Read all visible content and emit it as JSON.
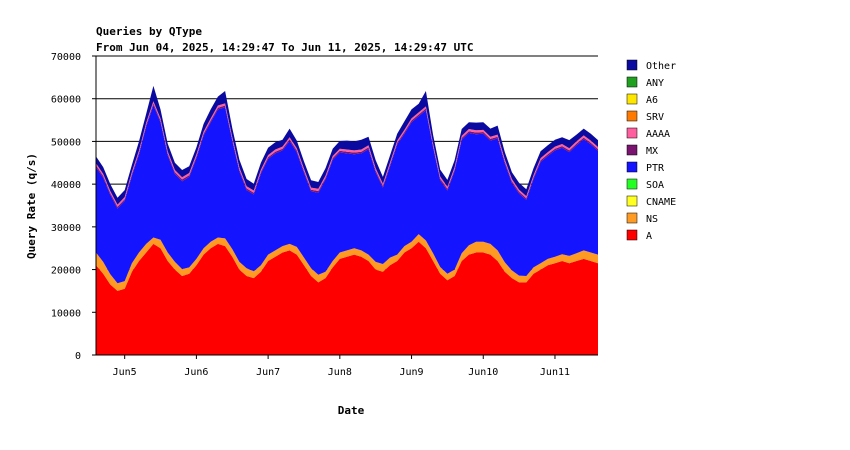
{
  "chart_data": {
    "type": "area",
    "stacked": true,
    "title": "Queries by QType",
    "subtitle": "From Jun 04, 2025, 14:29:47 To Jun 11, 2025, 14:29:47 UTC",
    "xlabel": "Date",
    "ylabel": "Query Rate (q/s)",
    "x_ticks": [
      "Jun5",
      "Jun6",
      "Jun7",
      "Jun8",
      "Jun9",
      "Jun10",
      "Jun11"
    ],
    "x_range_days": [
      0,
      7
    ],
    "x_tick_days": [
      0.4,
      1.4,
      2.4,
      3.4,
      4.4,
      5.4,
      6.4
    ],
    "ylim": [
      0,
      70000
    ],
    "y_ticks": [
      0,
      10000,
      20000,
      30000,
      40000,
      50000,
      60000,
      70000
    ],
    "y_tick_labels": [
      "0",
      "10000",
      "20000",
      "30000",
      "40000",
      "50000",
      "60000",
      "70000"
    ],
    "legend_position": "right",
    "colors": {
      "Other": "#0a0aa0",
      "ANY": "#1fa01f",
      "A6": "#ffe600",
      "SRV": "#ff7a00",
      "AAAA": "#ff5f9e",
      "MX": "#7a1470",
      "PTR": "#1414ff",
      "SOA": "#22ff22",
      "CNAME": "#ffff22",
      "NS": "#ff9a22",
      "A": "#ff0000"
    },
    "legend": [
      "Other",
      "ANY",
      "A6",
      "SRV",
      "AAAA",
      "MX",
      "PTR",
      "SOA",
      "CNAME",
      "NS",
      "A"
    ],
    "x_days": [
      0,
      0.1,
      0.2,
      0.3,
      0.4,
      0.5,
      0.6,
      0.7,
      0.8,
      0.9,
      1.0,
      1.1,
      1.2,
      1.3,
      1.4,
      1.5,
      1.6,
      1.7,
      1.8,
      1.9,
      2.0,
      2.1,
      2.2,
      2.3,
      2.4,
      2.5,
      2.6,
      2.7,
      2.8,
      2.9,
      3.0,
      3.1,
      3.2,
      3.3,
      3.4,
      3.5,
      3.6,
      3.7,
      3.8,
      3.9,
      4.0,
      4.1,
      4.2,
      4.3,
      4.4,
      4.5,
      4.6,
      4.7,
      4.8,
      4.9,
      5.0,
      5.1,
      5.2,
      5.3,
      5.4,
      5.5,
      5.6,
      5.7,
      5.8,
      5.9,
      6.0,
      6.1,
      6.2,
      6.3,
      6.4,
      6.5,
      6.6,
      6.7,
      6.8,
      6.9,
      7.0
    ],
    "series": [
      {
        "name": "A",
        "values": [
          21000,
          19000,
          16500,
          15000,
          15500,
          19500,
          22000,
          24000,
          26000,
          25000,
          22000,
          20000,
          18500,
          19000,
          21000,
          23500,
          25000,
          26000,
          25500,
          23000,
          20000,
          18500,
          18000,
          19500,
          22000,
          23000,
          24000,
          24500,
          23500,
          21000,
          18500,
          17000,
          18000,
          20500,
          22500,
          23000,
          23500,
          23000,
          22000,
          20000,
          19500,
          21000,
          22000,
          24000,
          25000,
          26500,
          25000,
          22000,
          19000,
          17500,
          18500,
          22000,
          23500,
          24000,
          24000,
          23500,
          22000,
          19500,
          18000,
          17000,
          17000,
          19000,
          20000,
          21000,
          21500,
          22000,
          21500,
          22000,
          22500,
          22000,
          21500
        ]
      },
      {
        "name": "NS",
        "values": [
          3000,
          2800,
          2400,
          1800,
          1800,
          2000,
          2000,
          2000,
          1500,
          2000,
          2000,
          1800,
          1600,
          1500,
          1500,
          1500,
          1500,
          1500,
          1800,
          1800,
          1800,
          1800,
          1600,
          1500,
          1500,
          1500,
          1500,
          1500,
          1800,
          1800,
          1800,
          1800,
          1500,
          1500,
          1500,
          1500,
          1500,
          1500,
          1500,
          1800,
          1800,
          1800,
          1500,
          1500,
          1500,
          1800,
          1800,
          1800,
          1600,
          1500,
          1500,
          1800,
          2200,
          2500,
          2500,
          2500,
          2500,
          2200,
          1800,
          1600,
          1500,
          1500,
          1500,
          1500,
          1500,
          1600,
          1700,
          1800,
          2000,
          2000,
          2000
        ]
      },
      {
        "name": "CNAME",
        "values": [
          0,
          0,
          0,
          0,
          0,
          0,
          0,
          0,
          0,
          0,
          0,
          0,
          0,
          0,
          0,
          0,
          0,
          0,
          0,
          0,
          0,
          0,
          0,
          0,
          0,
          0,
          0,
          0,
          0,
          0,
          0,
          0,
          0,
          0,
          0,
          0,
          0,
          0,
          0,
          0,
          0,
          0,
          0,
          0,
          0,
          0,
          0,
          0,
          0,
          0,
          0,
          0,
          0,
          0,
          0,
          0,
          0,
          0,
          0,
          0,
          0,
          0,
          0,
          0,
          0,
          0,
          0,
          0,
          0,
          0,
          0
        ]
      },
      {
        "name": "SOA",
        "values": [
          0,
          0,
          0,
          0,
          0,
          0,
          0,
          0,
          0,
          0,
          0,
          0,
          0,
          0,
          0,
          0,
          0,
          0,
          0,
          0,
          0,
          0,
          0,
          0,
          0,
          0,
          0,
          0,
          0,
          0,
          0,
          0,
          0,
          0,
          0,
          0,
          0,
          0,
          0,
          0,
          0,
          0,
          0,
          0,
          0,
          0,
          0,
          0,
          0,
          0,
          0,
          0,
          0,
          0,
          0,
          0,
          0,
          0,
          0,
          0,
          0,
          0,
          0,
          0,
          0,
          0,
          0,
          0,
          0,
          0,
          0
        ]
      },
      {
        "name": "PTR",
        "values": [
          20000,
          19700,
          18600,
          17500,
          18800,
          20500,
          23000,
          27500,
          31000,
          27500,
          22800,
          20600,
          20600,
          21200,
          23600,
          26400,
          28000,
          30000,
          30700,
          25300,
          21200,
          18300,
          18000,
          21500,
          22400,
          22700,
          22400,
          24100,
          22200,
          19900,
          18000,
          19200,
          21600,
          23700,
          23400,
          22700,
          22000,
          22700,
          24700,
          21000,
          17900,
          21400,
          25800,
          26300,
          28000,
          27600,
          30500,
          24800,
          20300,
          19500,
          23100,
          26600,
          26300,
          25200,
          25300,
          24200,
          26200,
          23200,
          20500,
          19200,
          17800,
          20700,
          23700,
          24100,
          24900,
          24900,
          24300,
          25300,
          26000,
          25300,
          24300
        ]
      },
      {
        "name": "MX",
        "values": [
          400,
          400,
          400,
          400,
          400,
          400,
          400,
          400,
          400,
          400,
          400,
          400,
          400,
          400,
          400,
          400,
          400,
          400,
          400,
          400,
          400,
          400,
          400,
          400,
          400,
          400,
          400,
          400,
          400,
          400,
          400,
          400,
          400,
          400,
          400,
          400,
          400,
          400,
          400,
          400,
          400,
          400,
          400,
          400,
          400,
          400,
          400,
          400,
          400,
          400,
          400,
          400,
          400,
          400,
          400,
          400,
          400,
          400,
          400,
          400,
          400,
          400,
          400,
          400,
          400,
          400,
          400,
          400,
          400,
          400,
          400
        ]
      },
      {
        "name": "AAAA",
        "values": [
          500,
          500,
          500,
          500,
          500,
          500,
          500,
          500,
          500,
          500,
          500,
          500,
          500,
          500,
          500,
          500,
          500,
          500,
          500,
          500,
          500,
          500,
          500,
          500,
          500,
          500,
          500,
          500,
          500,
          500,
          500,
          500,
          500,
          500,
          500,
          500,
          500,
          500,
          500,
          500,
          500,
          500,
          500,
          500,
          500,
          500,
          500,
          500,
          500,
          500,
          500,
          500,
          500,
          500,
          500,
          500,
          500,
          500,
          500,
          500,
          500,
          500,
          500,
          500,
          500,
          500,
          500,
          500,
          500,
          500,
          500
        ]
      },
      {
        "name": "SRV",
        "values": [
          0,
          0,
          0,
          0,
          0,
          0,
          0,
          0,
          0,
          0,
          0,
          0,
          0,
          0,
          0,
          0,
          0,
          0,
          0,
          0,
          0,
          0,
          0,
          0,
          0,
          0,
          0,
          0,
          0,
          0,
          0,
          0,
          0,
          0,
          0,
          0,
          0,
          0,
          0,
          0,
          0,
          0,
          0,
          0,
          0,
          0,
          0,
          0,
          0,
          0,
          0,
          0,
          0,
          0,
          0,
          0,
          0,
          0,
          0,
          0,
          0,
          0,
          0,
          0,
          0,
          0,
          0,
          0,
          0,
          0,
          0
        ]
      },
      {
        "name": "A6",
        "values": [
          0,
          0,
          0,
          0,
          0,
          0,
          0,
          0,
          0,
          0,
          0,
          0,
          0,
          0,
          0,
          0,
          0,
          0,
          0,
          0,
          0,
          0,
          0,
          0,
          0,
          0,
          0,
          0,
          0,
          0,
          0,
          0,
          0,
          0,
          0,
          0,
          0,
          0,
          0,
          0,
          0,
          0,
          0,
          0,
          0,
          0,
          0,
          0,
          0,
          0,
          0,
          0,
          0,
          0,
          0,
          0,
          0,
          0,
          0,
          0,
          0,
          0,
          0,
          0,
          0,
          0,
          0,
          0,
          0,
          0,
          0
        ]
      },
      {
        "name": "ANY",
        "values": [
          0,
          0,
          0,
          0,
          0,
          0,
          0,
          0,
          0,
          0,
          0,
          0,
          0,
          0,
          0,
          0,
          0,
          0,
          0,
          0,
          0,
          0,
          0,
          0,
          0,
          0,
          0,
          0,
          0,
          0,
          0,
          0,
          0,
          0,
          0,
          0,
          0,
          0,
          0,
          0,
          0,
          0,
          0,
          0,
          0,
          0,
          0,
          0,
          0,
          0,
          0,
          0,
          0,
          0,
          0,
          0,
          0,
          0,
          0,
          0,
          0,
          0,
          0,
          0,
          0,
          0,
          0,
          0,
          0,
          0,
          0
        ]
      },
      {
        "name": "Other",
        "values": [
          1600,
          1600,
          1600,
          1600,
          1600,
          1600,
          2100,
          2100,
          3600,
          2100,
          1800,
          1700,
          1700,
          1600,
          1600,
          1800,
          2100,
          2100,
          2900,
          2100,
          1800,
          1700,
          1600,
          1600,
          1700,
          1700,
          1600,
          2000,
          1800,
          1700,
          1700,
          1600,
          1700,
          1700,
          1800,
          2100,
          2100,
          2300,
          2000,
          1900,
          1600,
          1600,
          1600,
          2000,
          2100,
          2000,
          3600,
          2000,
          1600,
          1600,
          1600,
          1600,
          1600,
          1800,
          1800,
          1900,
          2100,
          1700,
          1600,
          1600,
          1600,
          1600,
          1600,
          1600,
          1600,
          1600,
          1900,
          1600,
          1600,
          1600,
          1600
        ]
      }
    ]
  }
}
